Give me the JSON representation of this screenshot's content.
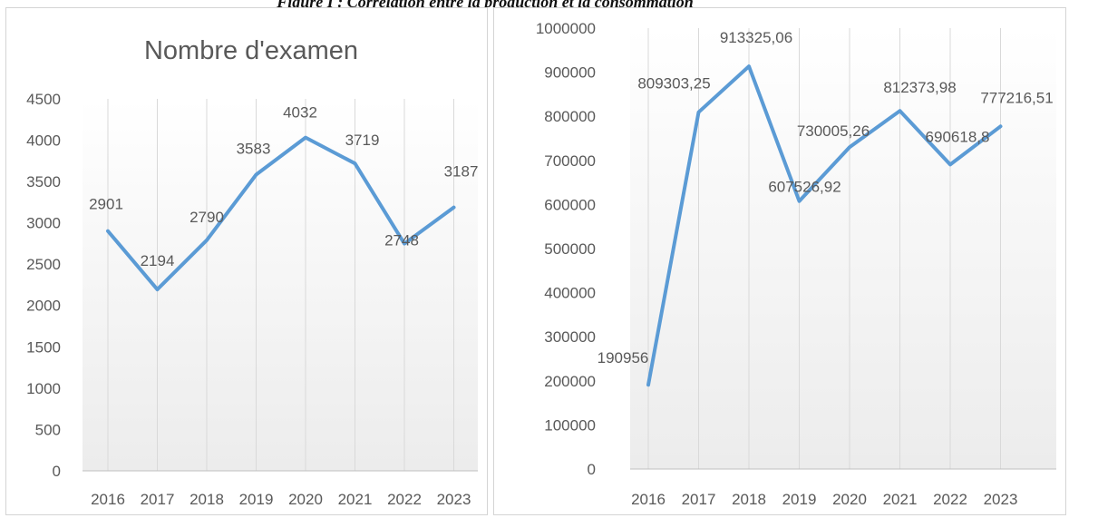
{
  "caption": "Figure I : Corrélation entre la production et la consommation",
  "chart_data": [
    {
      "type": "line",
      "title": "Nombre d'examen",
      "categories": [
        "2016",
        "2017",
        "2018",
        "2019",
        "2020",
        "2021",
        "2022",
        "2023"
      ],
      "values": [
        2901,
        2194,
        2790,
        3583,
        4032,
        3719,
        2748,
        3187
      ],
      "data_labels": [
        "2901",
        "2194",
        "2790",
        "3583",
        "4032",
        "3719",
        "2748",
        "3187"
      ],
      "yticks": [
        "0",
        "500",
        "1000",
        "1500",
        "2000",
        "2500",
        "3000",
        "3500",
        "4000",
        "4500"
      ],
      "ylim": [
        0,
        4500
      ],
      "line_color": "#5b9bd5",
      "grid": "vertical"
    },
    {
      "type": "line",
      "title": "",
      "categories": [
        "2016",
        "2017",
        "2018",
        "2019",
        "2020",
        "2021",
        "2022",
        "2023"
      ],
      "values": [
        190956,
        809303.25,
        913325.06,
        607526.92,
        730005.26,
        812373.98,
        690618.8,
        777216.51
      ],
      "data_labels": [
        "190956",
        "809303,25",
        "913325,06",
        "607526,92",
        "730005,26",
        "812373,98",
        "690618,8",
        "777216,51"
      ],
      "yticks": [
        "0",
        "100000",
        "200000",
        "300000",
        "400000",
        "500000",
        "600000",
        "700000",
        "800000",
        "900000",
        "1000000"
      ],
      "ylim": [
        0,
        1000000
      ],
      "line_color": "#5b9bd5",
      "grid": "vertical"
    }
  ]
}
